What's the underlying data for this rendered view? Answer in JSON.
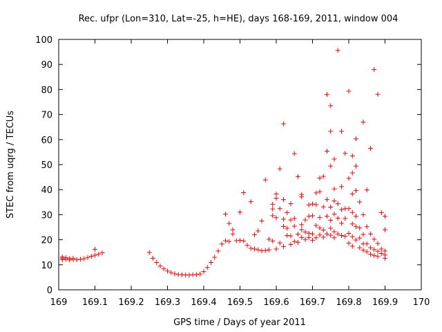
{
  "chart_data": {
    "type": "scatter",
    "title": "Rec. ufpr (Lon=310, Lat=-25, h=HE), days 168-169, 2011, window 004",
    "xlabel": "GPS time / Days of year 2011",
    "ylabel": "STEC from uqrg / TECUs",
    "xlim": [
      169,
      170
    ],
    "ylim": [
      0,
      100
    ],
    "x_ticks": [
      "169",
      "169.1",
      "169.2",
      "169.3",
      "169.4",
      "169.5",
      "169.6",
      "169.7",
      "169.8",
      "169.9",
      "170"
    ],
    "y_ticks": [
      "0",
      "10",
      "20",
      "30",
      "40",
      "50",
      "60",
      "70",
      "80",
      "90",
      "100"
    ],
    "marker": "+",
    "color": "#ff0000",
    "series": [
      {
        "name": "STEC",
        "points": [
          [
            169.01,
            12.0
          ],
          [
            169.01,
            12.6
          ],
          [
            169.01,
            13.1
          ],
          [
            169.02,
            12.2
          ],
          [
            169.02,
            12.8
          ],
          [
            169.03,
            11.9
          ],
          [
            169.03,
            12.5
          ],
          [
            169.04,
            12.1
          ],
          [
            169.04,
            12.6
          ],
          [
            169.05,
            12.0
          ],
          [
            169.06,
            12.2
          ],
          [
            169.07,
            12.4
          ],
          [
            169.08,
            12.9
          ],
          [
            169.09,
            13.4
          ],
          [
            169.1,
            16.2
          ],
          [
            169.1,
            13.8
          ],
          [
            169.11,
            14.2
          ],
          [
            169.12,
            14.8
          ],
          [
            169.25,
            14.9
          ],
          [
            169.26,
            12.6
          ],
          [
            169.27,
            10.9
          ],
          [
            169.28,
            9.5
          ],
          [
            169.29,
            8.4
          ],
          [
            169.3,
            7.5
          ],
          [
            169.31,
            6.9
          ],
          [
            169.32,
            6.4
          ],
          [
            169.33,
            6.1
          ],
          [
            169.34,
            6.0
          ],
          [
            169.35,
            5.9
          ],
          [
            169.36,
            5.9
          ],
          [
            169.37,
            6.0
          ],
          [
            169.38,
            6.1
          ],
          [
            169.39,
            6.3
          ],
          [
            169.4,
            7.3
          ],
          [
            169.41,
            8.9
          ],
          [
            169.42,
            10.9
          ],
          [
            169.43,
            13.0
          ],
          [
            169.44,
            15.5
          ],
          [
            169.45,
            18.3
          ],
          [
            169.46,
            19.6
          ],
          [
            169.47,
            19.3
          ],
          [
            169.46,
            30.2
          ],
          [
            169.47,
            26.5
          ],
          [
            169.48,
            24.0
          ],
          [
            169.48,
            22.3
          ],
          [
            169.49,
            19.6
          ],
          [
            169.5,
            31.0
          ],
          [
            169.5,
            19.7
          ],
          [
            169.51,
            38.8
          ],
          [
            169.51,
            19.5
          ],
          [
            169.52,
            17.8
          ],
          [
            169.53,
            35.2
          ],
          [
            169.53,
            16.6
          ],
          [
            169.54,
            22.0
          ],
          [
            169.54,
            16.3
          ],
          [
            169.55,
            23.5
          ],
          [
            169.55,
            16.0
          ],
          [
            169.56,
            27.5
          ],
          [
            169.56,
            15.6
          ],
          [
            169.57,
            43.9
          ],
          [
            169.57,
            15.7
          ],
          [
            169.58,
            20.2
          ],
          [
            169.58,
            16.0
          ],
          [
            169.59,
            34.2
          ],
          [
            169.59,
            32.3
          ],
          [
            169.59,
            29.6
          ],
          [
            169.59,
            19.5
          ],
          [
            169.6,
            38.3
          ],
          [
            169.6,
            36.6
          ],
          [
            169.6,
            28.8
          ],
          [
            169.6,
            16.3
          ],
          [
            169.61,
            48.3
          ],
          [
            169.61,
            18.7
          ],
          [
            169.61,
            32.4
          ],
          [
            169.62,
            66.3
          ],
          [
            169.62,
            36.0
          ],
          [
            169.62,
            28.2
          ],
          [
            169.62,
            25.3
          ],
          [
            169.62,
            17.3
          ],
          [
            169.63,
            30.8
          ],
          [
            169.63,
            24.6
          ],
          [
            169.63,
            21.7
          ],
          [
            169.64,
            34.4
          ],
          [
            169.64,
            27.9
          ],
          [
            169.64,
            21.5
          ],
          [
            169.64,
            18.1
          ],
          [
            169.65,
            54.4
          ],
          [
            169.65,
            28.5
          ],
          [
            169.65,
            25.4
          ],
          [
            169.65,
            19.3
          ],
          [
            169.66,
            45.2
          ],
          [
            169.66,
            22.2
          ],
          [
            169.66,
            19.0
          ],
          [
            169.67,
            38.1
          ],
          [
            169.67,
            37.2
          ],
          [
            169.67,
            26.0
          ],
          [
            169.67,
            24.0
          ],
          [
            169.67,
            20.9
          ],
          [
            169.68,
            27.9
          ],
          [
            169.68,
            23.1
          ],
          [
            169.68,
            20.1
          ],
          [
            169.69,
            33.9
          ],
          [
            169.69,
            29.4
          ],
          [
            169.69,
            22.6
          ],
          [
            169.69,
            20.9
          ],
          [
            169.7,
            34.3
          ],
          [
            169.7,
            29.6
          ],
          [
            169.7,
            22.3
          ],
          [
            169.7,
            19.8
          ],
          [
            169.71,
            38.7
          ],
          [
            169.71,
            34.0
          ],
          [
            169.71,
            25.7
          ],
          [
            169.71,
            20.8
          ],
          [
            169.72,
            44.6
          ],
          [
            169.72,
            39.2
          ],
          [
            169.72,
            28.9
          ],
          [
            169.72,
            24.7
          ],
          [
            169.72,
            21.9
          ],
          [
            169.73,
            45.3
          ],
          [
            169.73,
            33.1
          ],
          [
            169.73,
            23.9
          ],
          [
            169.73,
            21.0
          ],
          [
            169.74,
            78.0
          ],
          [
            169.74,
            55.4
          ],
          [
            169.74,
            36.1
          ],
          [
            169.74,
            29.4
          ],
          [
            169.74,
            22.3
          ],
          [
            169.75,
            73.5
          ],
          [
            169.75,
            63.3
          ],
          [
            169.75,
            49.4
          ],
          [
            169.75,
            33.0
          ],
          [
            169.75,
            27.8
          ],
          [
            169.75,
            24.6
          ],
          [
            169.75,
            21.8
          ],
          [
            169.76,
            52.2
          ],
          [
            169.76,
            40.3
          ],
          [
            169.76,
            35.5
          ],
          [
            169.76,
            30.2
          ],
          [
            169.76,
            23.2
          ],
          [
            169.76,
            20.8
          ],
          [
            169.77,
            95.6
          ],
          [
            169.77,
            34.4
          ],
          [
            169.77,
            28.6
          ],
          [
            169.77,
            22.3
          ],
          [
            169.78,
            63.3
          ],
          [
            169.78,
            41.2
          ],
          [
            169.78,
            32.0
          ],
          [
            169.78,
            26.6
          ],
          [
            169.78,
            21.7
          ],
          [
            169.79,
            54.5
          ],
          [
            169.79,
            32.4
          ],
          [
            169.79,
            28.5
          ],
          [
            169.79,
            21.4
          ],
          [
            169.8,
            79.3
          ],
          [
            169.8,
            44.5
          ],
          [
            169.8,
            32.4
          ],
          [
            169.8,
            22.5
          ],
          [
            169.8,
            18.6
          ],
          [
            169.81,
            53.5
          ],
          [
            169.81,
            46.7
          ],
          [
            169.81,
            38.3
          ],
          [
            169.81,
            30.9
          ],
          [
            169.81,
            26.3
          ],
          [
            169.81,
            21.2
          ],
          [
            169.81,
            17.4
          ],
          [
            169.82,
            60.3
          ],
          [
            169.82,
            49.4
          ],
          [
            169.82,
            39.6
          ],
          [
            169.82,
            29.4
          ],
          [
            169.82,
            25.2
          ],
          [
            169.82,
            19.9
          ],
          [
            169.83,
            35.1
          ],
          [
            169.83,
            24.7
          ],
          [
            169.83,
            20.7
          ],
          [
            169.83,
            16.8
          ],
          [
            169.84,
            67.0
          ],
          [
            169.84,
            30.0
          ],
          [
            169.84,
            22.1
          ],
          [
            169.84,
            18.4
          ],
          [
            169.84,
            15.8
          ],
          [
            169.85,
            39.9
          ],
          [
            169.85,
            25.2
          ],
          [
            169.85,
            18.4
          ],
          [
            169.85,
            15.2
          ],
          [
            169.86,
            56.5
          ],
          [
            169.86,
            22.3
          ],
          [
            169.86,
            16.8
          ],
          [
            169.86,
            14.2
          ],
          [
            169.87,
            88.0
          ],
          [
            169.87,
            20.2
          ],
          [
            169.87,
            16.1
          ],
          [
            169.87,
            13.7
          ],
          [
            169.88,
            78.1
          ],
          [
            169.88,
            18.5
          ],
          [
            169.88,
            15.4
          ],
          [
            169.88,
            13.3
          ],
          [
            169.89,
            30.8
          ],
          [
            169.89,
            16.3
          ],
          [
            169.89,
            14.5
          ],
          [
            169.9,
            29.4
          ],
          [
            169.9,
            24.0
          ],
          [
            169.9,
            15.5
          ],
          [
            169.9,
            13.9
          ],
          [
            169.9,
            12.6
          ]
        ]
      }
    ]
  }
}
